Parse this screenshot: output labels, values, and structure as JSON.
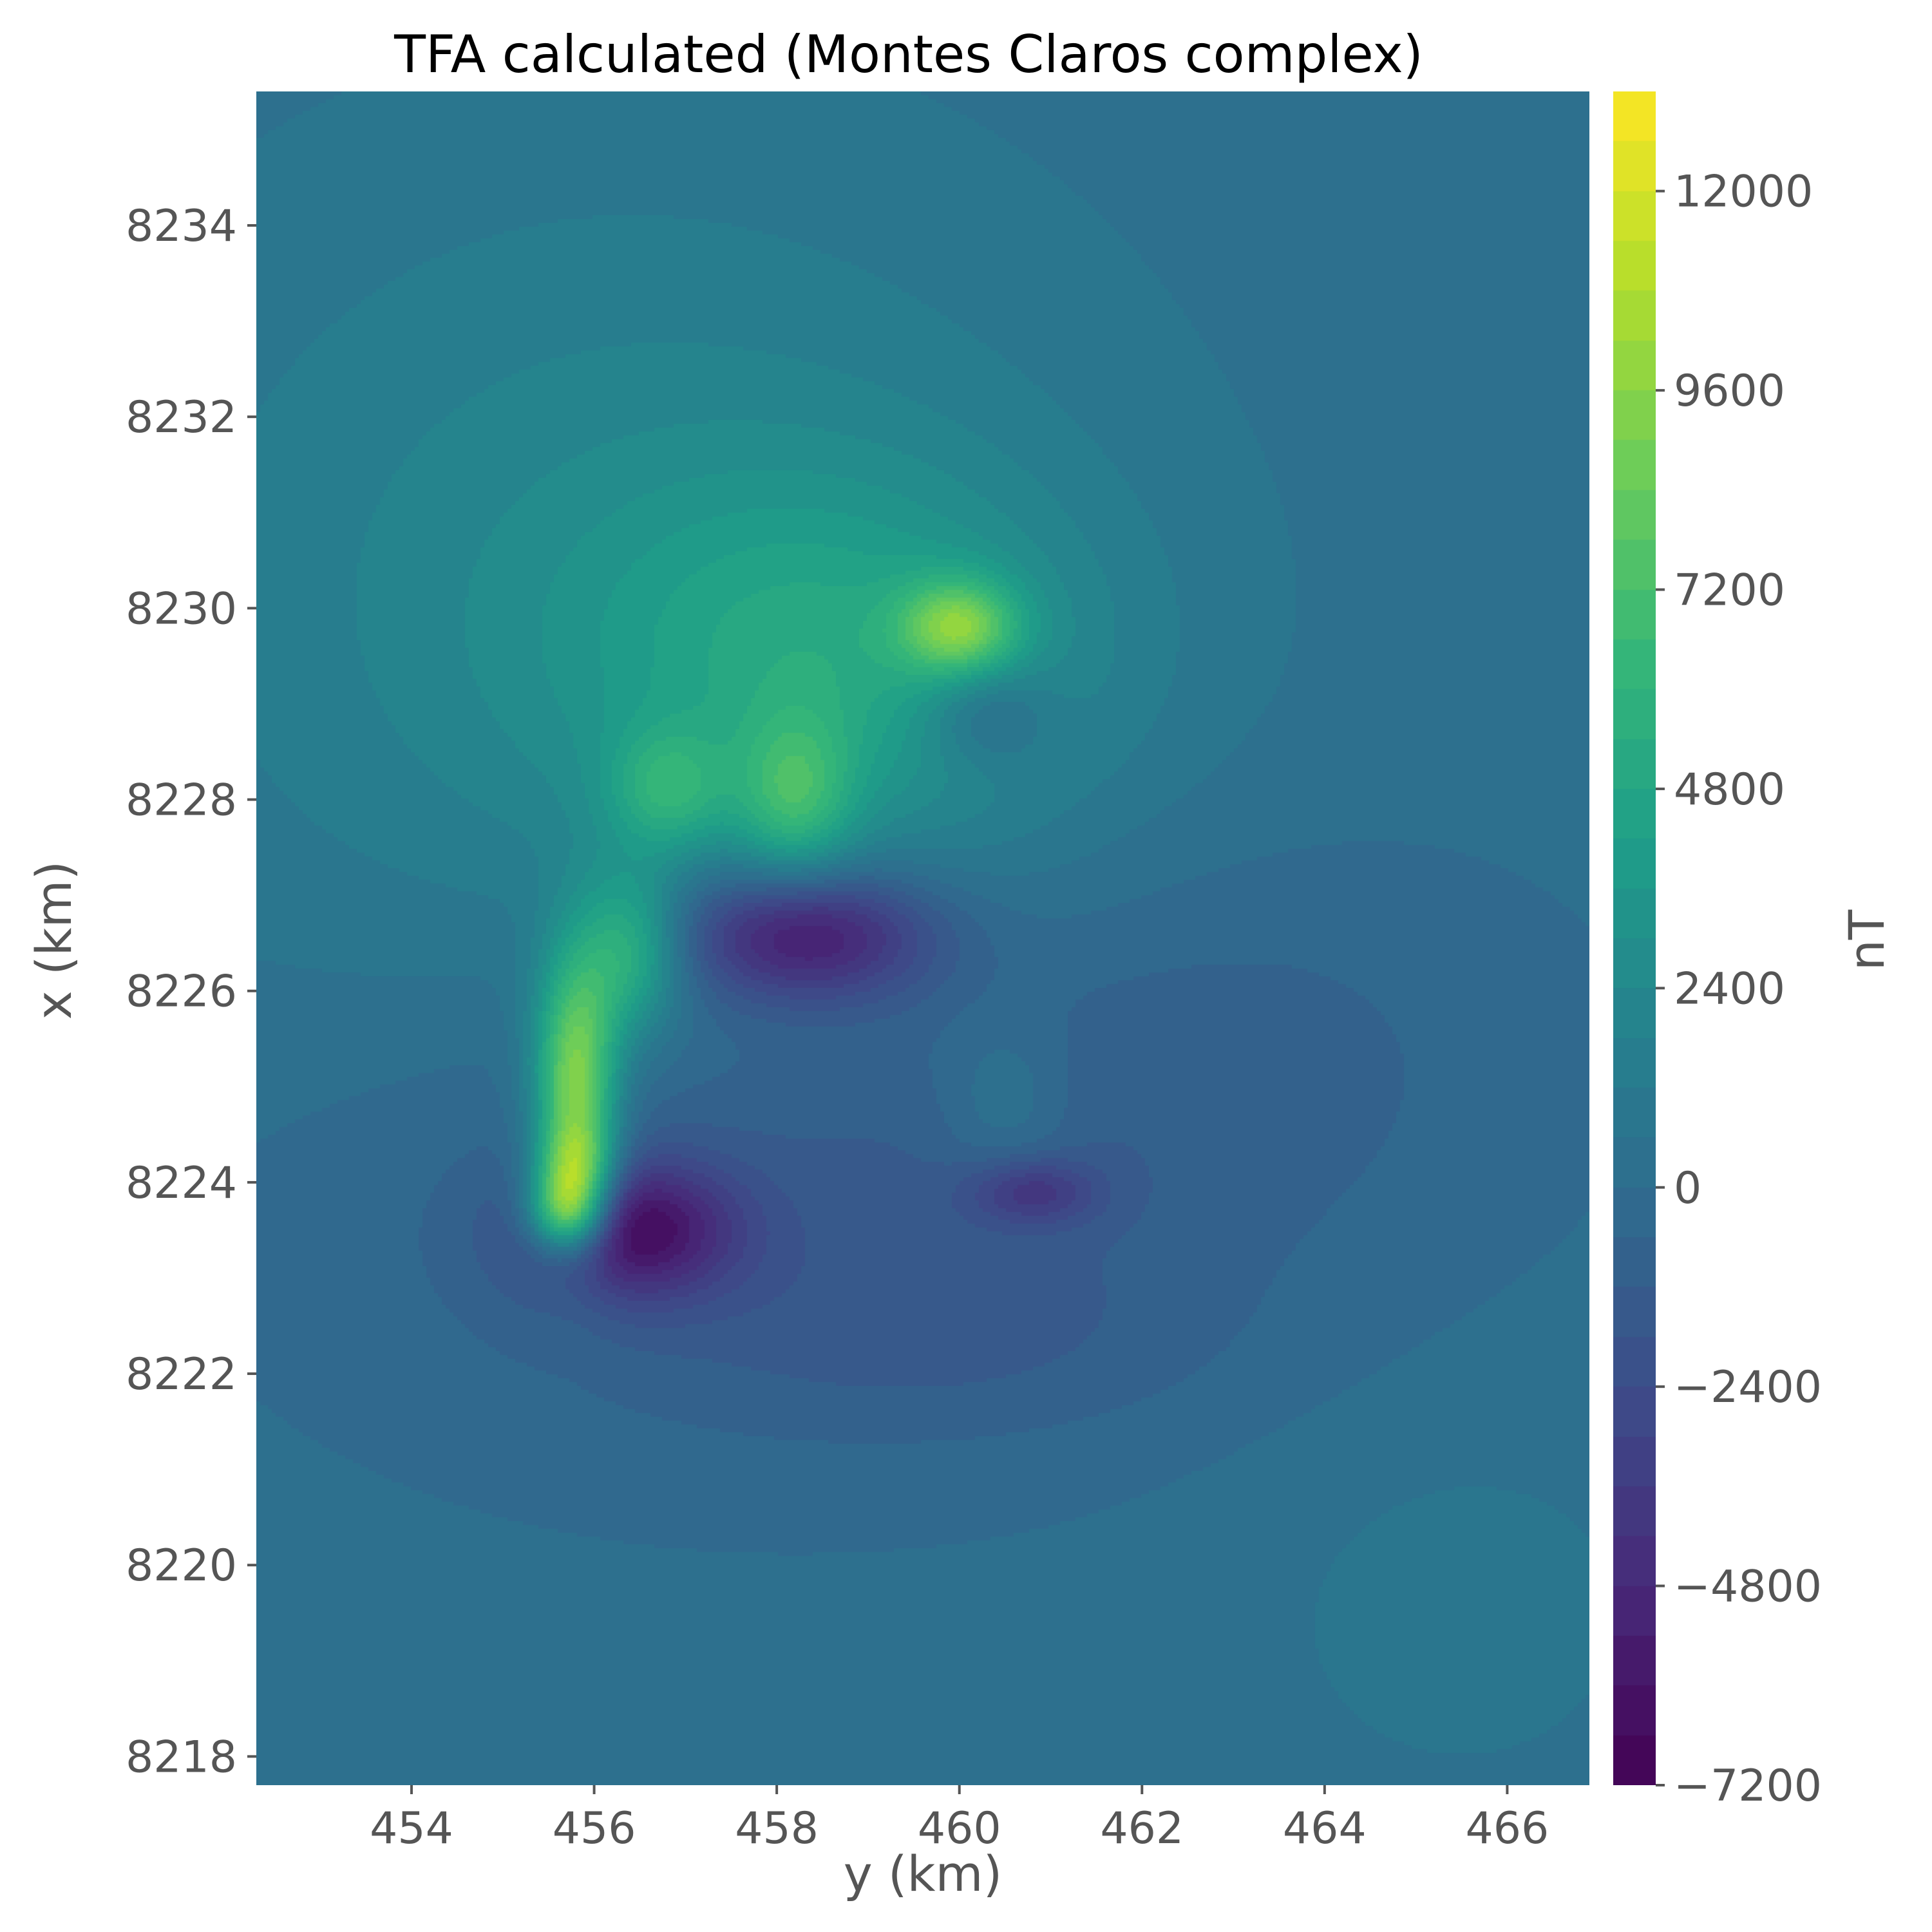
{
  "chart_data": {
    "type": "heatmap",
    "title": "TFA calculated (Montes Claros complex)",
    "xlabel": "y (km)",
    "ylabel": "x (km)",
    "colorbar_label": "nT",
    "colormap": "viridis",
    "xlim": [
      452.3,
      466.9
    ],
    "ylim": [
      8217.7,
      8235.4
    ],
    "clim": [
      -7200,
      13200
    ],
    "x_ticks": [
      454,
      456,
      458,
      460,
      462,
      464,
      466
    ],
    "y_ticks": [
      8218,
      8220,
      8222,
      8224,
      8226,
      8228,
      8230,
      8232,
      8234
    ],
    "colorbar_ticks": [
      -7200,
      -4800,
      -2400,
      0,
      2400,
      4800,
      7200,
      9600,
      12000
    ],
    "x_tick_labels": [
      "454",
      "456",
      "458",
      "460",
      "462",
      "464",
      "466"
    ],
    "y_tick_labels": [
      "8218",
      "8220",
      "8222",
      "8224",
      "8226",
      "8228",
      "8230",
      "8232",
      "8234"
    ],
    "colorbar_tick_labels": [
      "−7200",
      "−4800",
      "−2400",
      "0",
      "2400",
      "4800",
      "7200",
      "9600",
      "12000"
    ],
    "background_value": 200,
    "anomalies": [
      {
        "y": 456.4,
        "x": 8230.2,
        "sy": 3.8,
        "sx": 3.2,
        "value": 2100
      },
      {
        "y": 458.6,
        "x": 8229.5,
        "sy": 1.9,
        "sx": 1.3,
        "value": 3300
      },
      {
        "y": 455.8,
        "x": 8225.0,
        "sy": 0.32,
        "sx": 0.95,
        "value": 9500
      },
      {
        "y": 455.8,
        "x": 8224.2,
        "sy": 0.3,
        "sx": 0.3,
        "value": 4500
      },
      {
        "y": 455.7,
        "x": 8223.7,
        "sy": 0.3,
        "sx": 0.3,
        "value": 9000
      },
      {
        "y": 456.4,
        "x": 8226.4,
        "sy": 0.4,
        "sx": 0.6,
        "value": 5000
      },
      {
        "y": 456.8,
        "x": 8228.1,
        "sy": 0.45,
        "sx": 0.45,
        "value": 3500
      },
      {
        "y": 458.2,
        "x": 8228.0,
        "sy": 0.45,
        "sx": 0.6,
        "value": 4200
      },
      {
        "y": 460.0,
        "x": 8229.8,
        "sy": 0.45,
        "sx": 0.35,
        "value": 6200
      },
      {
        "y": 458.3,
        "x": 8226.6,
        "sy": 1.0,
        "sx": 0.5,
        "value": -6200
      },
      {
        "y": 456.4,
        "x": 8223.5,
        "sy": 0.8,
        "sx": 0.5,
        "value": -5800
      },
      {
        "y": 460.3,
        "x": 8228.9,
        "sy": 0.5,
        "sx": 0.4,
        "value": -2500
      },
      {
        "y": 460.8,
        "x": 8223.9,
        "sy": 0.5,
        "sx": 0.25,
        "value": -3000
      },
      {
        "y": 458.0,
        "x": 8223.8,
        "sy": 3.5,
        "sx": 1.8,
        "value": -1700
      },
      {
        "y": 460.0,
        "x": 8222.3,
        "sy": 2.2,
        "sx": 0.7,
        "value": -700
      },
      {
        "y": 460.5,
        "x": 8224.8,
        "sy": 0.5,
        "sx": 0.6,
        "value": 1400
      },
      {
        "y": 463.0,
        "x": 8225.5,
        "sy": 2.5,
        "sx": 1.6,
        "value": -900
      },
      {
        "y": 465.5,
        "x": 8219.5,
        "sy": 1.6,
        "sx": 1.4,
        "value": 700
      }
    ]
  }
}
